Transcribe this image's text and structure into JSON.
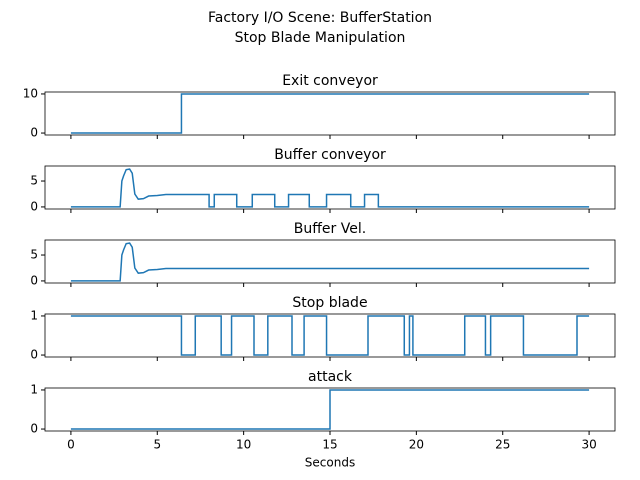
{
  "title": [
    "Factory I/O Scene: BufferStation",
    "Stop Blade Manipulation"
  ],
  "chart_data": [
    {
      "type": "line",
      "title": "Exit conveyor",
      "color": "#1f77b4",
      "x": [
        0,
        6.4,
        6.4,
        30
      ],
      "values": [
        0,
        0,
        10,
        10
      ],
      "xlim": [
        -1.5,
        31.5
      ],
      "xticks": [
        0,
        5,
        10,
        15,
        20,
        25,
        30
      ],
      "ylim": [
        -0.5,
        10.5
      ],
      "yticks": [
        0,
        10
      ]
    },
    {
      "type": "line",
      "title": "Buffer conveyor",
      "color": "#1f77b4",
      "x": [
        0,
        2.85,
        2.95,
        3.05,
        3.2,
        3.4,
        3.55,
        3.7,
        3.9,
        4.2,
        4.5,
        5,
        5.5,
        8.0,
        8.0,
        8.3,
        8.3,
        9.6,
        9.6,
        10.5,
        10.5,
        11.8,
        11.8,
        12.6,
        12.6,
        13.8,
        13.8,
        14.8,
        14.8,
        16.2,
        16.2,
        17.0,
        17.0,
        17.8,
        17.8,
        30
      ],
      "values": [
        0,
        0,
        5,
        6,
        7.2,
        7.3,
        6.5,
        2.5,
        1.5,
        1.6,
        2.1,
        2.2,
        2.4,
        2.4,
        0,
        0,
        2.4,
        2.4,
        0,
        0,
        2.4,
        2.4,
        0,
        0,
        2.4,
        2.4,
        0,
        0,
        2.4,
        2.4,
        0,
        0,
        2.4,
        2.4,
        0,
        0
      ],
      "xlim": [
        -1.5,
        31.5
      ],
      "xticks": [
        0,
        5,
        10,
        15,
        20,
        25,
        30
      ],
      "ylim": [
        -0.4,
        7.9
      ],
      "yticks": [
        0,
        5
      ]
    },
    {
      "type": "line",
      "title": "Buffer Vel.",
      "color": "#1f77b4",
      "x": [
        0,
        2.85,
        2.95,
        3.05,
        3.2,
        3.4,
        3.55,
        3.7,
        3.9,
        4.2,
        4.5,
        5,
        5.5,
        30
      ],
      "values": [
        0,
        0,
        5,
        6,
        7.2,
        7.3,
        6.5,
        2.5,
        1.5,
        1.6,
        2.1,
        2.2,
        2.4,
        2.4
      ],
      "xlim": [
        -1.5,
        31.5
      ],
      "xticks": [
        0,
        5,
        10,
        15,
        20,
        25,
        30
      ],
      "ylim": [
        -0.4,
        7.9
      ],
      "yticks": [
        0,
        5
      ]
    },
    {
      "type": "line",
      "title": "Stop blade",
      "color": "#1f77b4",
      "x": [
        0,
        6.4,
        6.4,
        7.2,
        7.2,
        8.7,
        8.7,
        9.3,
        9.3,
        10.6,
        10.6,
        11.4,
        11.4,
        12.8,
        12.8,
        13.5,
        13.5,
        14.8,
        14.8,
        17.2,
        17.2,
        19.3,
        19.3,
        19.6,
        19.6,
        19.8,
        19.8,
        22.8,
        22.8,
        24.0,
        24.0,
        24.3,
        24.3,
        26.2,
        26.2,
        29.3,
        29.3,
        30
      ],
      "values": [
        1,
        1,
        0,
        0,
        1,
        1,
        0,
        0,
        1,
        1,
        0,
        0,
        1,
        1,
        0,
        0,
        1,
        1,
        0,
        0,
        1,
        1,
        0,
        0,
        1,
        1,
        0,
        0,
        1,
        1,
        0,
        0,
        1,
        1,
        0,
        0,
        1,
        1
      ],
      "xlim": [
        -1.5,
        31.5
      ],
      "xticks": [
        0,
        5,
        10,
        15,
        20,
        25,
        30
      ],
      "ylim": [
        -0.05,
        1.05
      ],
      "yticks": [
        0,
        1
      ]
    },
    {
      "type": "line",
      "title": "attack",
      "color": "#1f77b4",
      "xlabel": "Seconds",
      "x": [
        0,
        15,
        15,
        30
      ],
      "values": [
        0,
        0,
        1,
        1
      ],
      "xlim": [
        -1.5,
        31.5
      ],
      "xticks": [
        0,
        5,
        10,
        15,
        20,
        25,
        30
      ],
      "ylim": [
        -0.05,
        1.05
      ],
      "yticks": [
        0,
        1
      ]
    }
  ]
}
